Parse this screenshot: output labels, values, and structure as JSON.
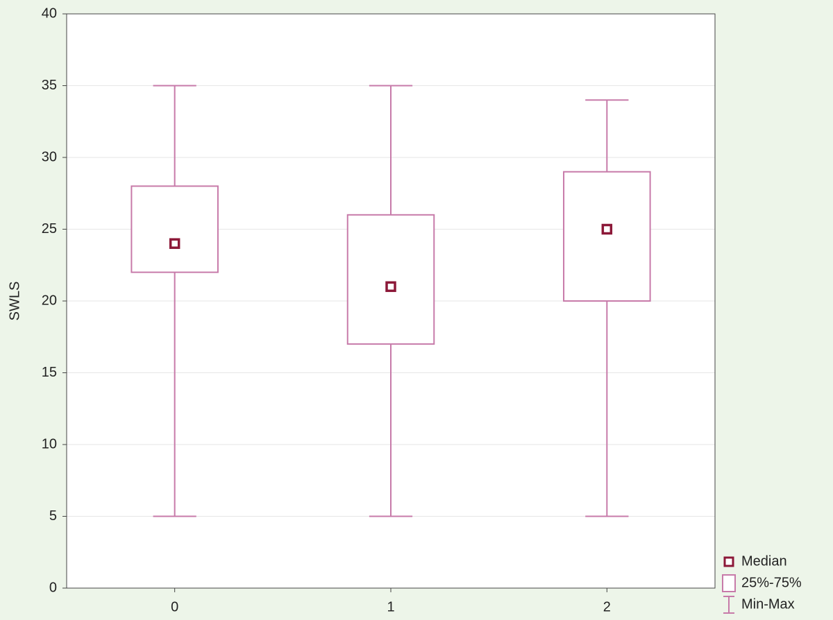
{
  "chart_data": {
    "type": "box",
    "y_label": "SWLS",
    "categories": [
      "0",
      "1",
      "2"
    ],
    "boxes": [
      {
        "min": 5,
        "q1": 22,
        "median": 24,
        "q3": 28,
        "max": 35
      },
      {
        "min": 5,
        "q1": 17,
        "median": 21,
        "q3": 26,
        "max": 35
      },
      {
        "min": 5,
        "q1": 20,
        "median": 25,
        "q3": 29,
        "max": 34
      }
    ],
    "box_color": "#c77aa9",
    "median_color": "#8c1838",
    "ylim": [
      0,
      40
    ],
    "yticks": [
      0,
      5,
      10,
      15,
      20,
      25,
      30,
      35,
      40
    ],
    "grid": true,
    "legend_position": "bottom-right",
    "legend": {
      "median": "Median",
      "box": "25%-75%",
      "whisker": "Min-Max"
    }
  }
}
